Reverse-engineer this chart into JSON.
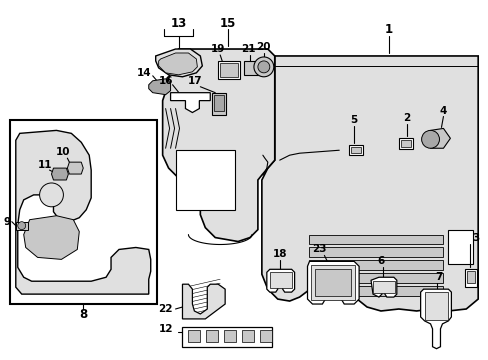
{
  "background_color": "#ffffff",
  "line_color": "#000000",
  "fill_light": "#e0e0e0",
  "fill_white": "#ffffff",
  "fill_mid": "#c8c8c8",
  "fill_dark": "#a8a8a8"
}
